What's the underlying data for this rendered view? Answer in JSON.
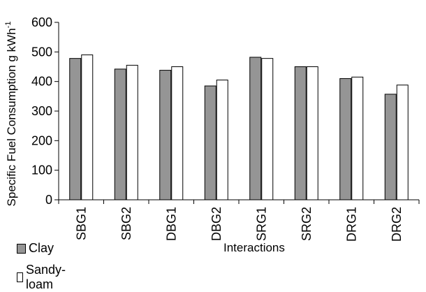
{
  "chart_data": {
    "type": "bar",
    "title": "",
    "xlabel": "Interactions",
    "ylabel_main": "Specific Fuel Consumption g kWh",
    "ylabel_sup": "-1",
    "ylim": [
      0,
      600
    ],
    "yticks": [
      "0",
      "100",
      "200",
      "300",
      "400",
      "500",
      "600"
    ],
    "grid": false,
    "legend_position": "bottom-left",
    "categories": [
      "SBG1",
      "SBG2",
      "DBG1",
      "DBG2",
      "SRG1",
      "SRG2",
      "DRG1",
      "DRG2"
    ],
    "series": [
      {
        "name": "Clay",
        "color": "#959595",
        "values": [
          478,
          442,
          438,
          385,
          482,
          450,
          410,
          357
        ]
      },
      {
        "name": "Sandy-loam",
        "color": "#ffffff",
        "values": [
          490,
          455,
          450,
          405,
          478,
          450,
          415,
          388
        ]
      }
    ]
  }
}
